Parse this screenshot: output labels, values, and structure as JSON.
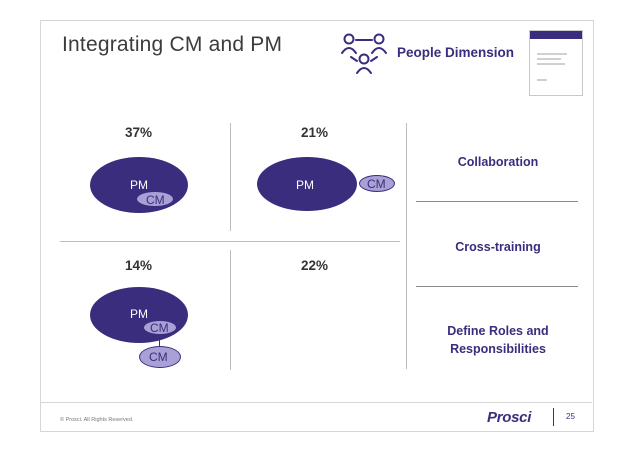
{
  "header": {
    "title": "Integrating CM and PM",
    "people_icon": "people-network-icon",
    "dimension_label": "People Dimension",
    "thumbnail_icon": "document-thumbnail-icon"
  },
  "quadrants": [
    {
      "percent": "37%",
      "pm_label": "PM",
      "cm_labels": [
        "CM"
      ]
    },
    {
      "percent": "21%",
      "pm_label": "PM",
      "cm_labels": [
        "CM"
      ]
    },
    {
      "percent": "14%",
      "pm_label": "PM",
      "cm_labels": [
        "CM",
        "CM"
      ]
    },
    {
      "percent": "22%",
      "pm_label": "",
      "cm_labels": []
    }
  ],
  "practices": [
    "Collaboration",
    "Cross-training",
    "Define Roles and Responsibilities"
  ],
  "footer": {
    "copyright": "© Prosci. All Rights Reserved.",
    "logo": "Prosci",
    "page_number": "25"
  },
  "colors": {
    "brand_purple": "#3a2d7d",
    "cm_lavender": "#a9a1d6",
    "divider_gray": "#bdbdbd"
  }
}
